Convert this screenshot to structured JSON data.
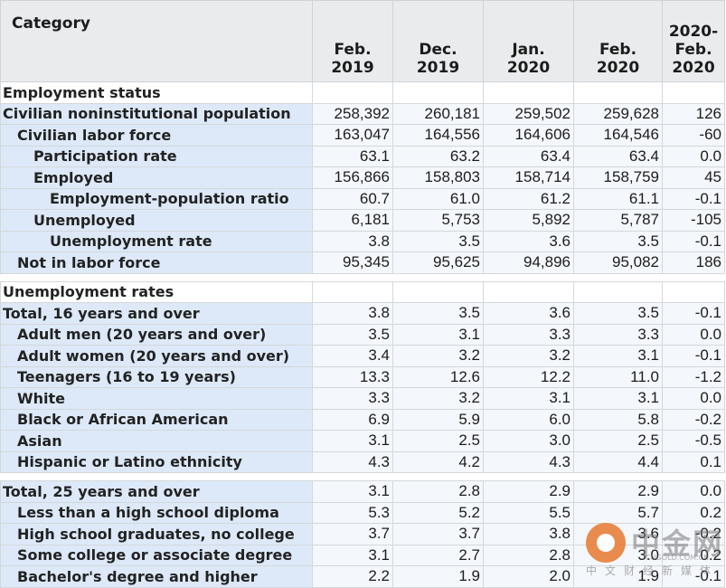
{
  "header": {
    "category": "Category",
    "col1": [
      "Feb.",
      "2019"
    ],
    "col2": [
      "Dec.",
      "2019"
    ],
    "col3": [
      "Jan.",
      "2020"
    ],
    "col4": [
      "Feb.",
      "2020"
    ],
    "col5": [
      "2020-",
      "Feb.",
      "2020"
    ]
  },
  "sections": [
    {
      "title": "Employment status",
      "rows": [
        {
          "label": "Civilian noninstitutional population",
          "indent": 0,
          "values": [
            "258,392",
            "260,181",
            "259,502",
            "259,628",
            "126"
          ]
        },
        {
          "label": "Civilian labor force",
          "indent": 1,
          "values": [
            "163,047",
            "164,556",
            "164,606",
            "164,546",
            "-60"
          ]
        },
        {
          "label": "Participation rate",
          "indent": 2,
          "values": [
            "63.1",
            "63.2",
            "63.4",
            "63.4",
            "0.0"
          ]
        },
        {
          "label": "Employed",
          "indent": 2,
          "values": [
            "156,866",
            "158,803",
            "158,714",
            "158,759",
            "45"
          ]
        },
        {
          "label": "Employment-population ratio",
          "indent": 3,
          "values": [
            "60.7",
            "61.0",
            "61.2",
            "61.1",
            "-0.1"
          ]
        },
        {
          "label": "Unemployed",
          "indent": 2,
          "values": [
            "6,181",
            "5,753",
            "5,892",
            "5,787",
            "-105"
          ]
        },
        {
          "label": "Unemployment rate",
          "indent": 3,
          "values": [
            "3.8",
            "3.5",
            "3.6",
            "3.5",
            "-0.1"
          ]
        },
        {
          "label": "Not in labor force",
          "indent": 1,
          "values": [
            "95,345",
            "95,625",
            "94,896",
            "95,082",
            "186"
          ]
        }
      ]
    },
    {
      "title": "Unemployment rates",
      "rows": [
        {
          "label": "Total, 16 years and over",
          "indent": 0,
          "values": [
            "3.8",
            "3.5",
            "3.6",
            "3.5",
            "-0.1"
          ]
        },
        {
          "label": "Adult men (20 years and over)",
          "indent": 1,
          "values": [
            "3.5",
            "3.1",
            "3.3",
            "3.3",
            "0.0"
          ]
        },
        {
          "label": "Adult women (20 years and over)",
          "indent": 1,
          "values": [
            "3.4",
            "3.2",
            "3.2",
            "3.1",
            "-0.1"
          ]
        },
        {
          "label": "Teenagers (16 to 19 years)",
          "indent": 1,
          "values": [
            "13.3",
            "12.6",
            "12.2",
            "11.0",
            "-1.2"
          ]
        },
        {
          "label": "White",
          "indent": 1,
          "values": [
            "3.3",
            "3.2",
            "3.1",
            "3.1",
            "0.0"
          ]
        },
        {
          "label": "Black or African American",
          "indent": 1,
          "values": [
            "6.9",
            "5.9",
            "6.0",
            "5.8",
            "-0.2"
          ]
        },
        {
          "label": "Asian",
          "indent": 1,
          "values": [
            "3.1",
            "2.5",
            "3.0",
            "2.5",
            "-0.5"
          ]
        },
        {
          "label": "Hispanic or Latino ethnicity",
          "indent": 1,
          "values": [
            "4.3",
            "4.2",
            "4.3",
            "4.4",
            "0.1"
          ]
        }
      ]
    },
    {
      "title": "",
      "rows": [
        {
          "label": "Total, 25 years and over",
          "indent": 0,
          "values": [
            "3.1",
            "2.8",
            "2.9",
            "2.9",
            "0.0"
          ]
        },
        {
          "label": "Less than a high school diploma",
          "indent": 1,
          "values": [
            "5.3",
            "5.2",
            "5.5",
            "5.7",
            "0.2"
          ]
        },
        {
          "label": "High school graduates, no college",
          "indent": 1,
          "values": [
            "3.7",
            "3.7",
            "3.8",
            "3.6",
            "-0.2"
          ]
        },
        {
          "label": "Some college or associate degree",
          "indent": 1,
          "values": [
            "3.1",
            "2.7",
            "2.8",
            "3.0",
            "0.2"
          ]
        },
        {
          "label": "Bachelor's degree and higher",
          "indent": 1,
          "values": [
            "2.2",
            "1.9",
            "2.0",
            "1.9",
            "-0.1"
          ]
        }
      ]
    }
  ],
  "watermark": {
    "brand": "中金网",
    "sub": "中文财经新媒体",
    "url": "CNGOLD.COM.CN"
  }
}
